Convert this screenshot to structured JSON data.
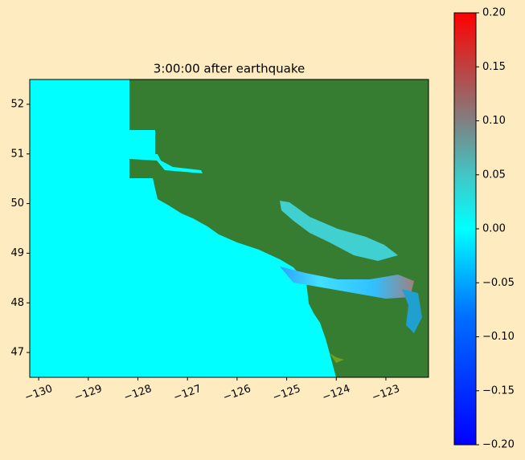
{
  "chart_data": {
    "type": "heatmap",
    "title": "3:00:00 after earthquake",
    "xlim": [
      -130.18,
      -122.14
    ],
    "ylim": [
      46.5,
      52.5
    ],
    "xticks": [
      {
        "value": -130,
        "label": "−130"
      },
      {
        "value": -129,
        "label": "−129"
      },
      {
        "value": -128,
        "label": "−128"
      },
      {
        "value": -127,
        "label": "−127"
      },
      {
        "value": -126,
        "label": "−126"
      },
      {
        "value": -125,
        "label": "−125"
      },
      {
        "value": -124,
        "label": "−124"
      },
      {
        "value": -123,
        "label": "−123"
      }
    ],
    "yticks": [
      47,
      48,
      49,
      50,
      51,
      52
    ],
    "colorbar": {
      "lim": [
        -0.2,
        0.2
      ],
      "ticks": [
        {
          "value": 0.2,
          "label": "0.20"
        },
        {
          "value": 0.15,
          "label": "0.15"
        },
        {
          "value": 0.1,
          "label": "0.10"
        },
        {
          "value": 0.05,
          "label": "0.05"
        },
        {
          "value": 0,
          "label": "0.00"
        },
        {
          "value": -0.05,
          "label": "−0.05"
        },
        {
          "value": -0.1,
          "label": "−0.10"
        },
        {
          "value": -0.15,
          "label": "−0.15"
        },
        {
          "value": -0.2,
          "label": "−0.20"
        }
      ]
    }
  }
}
